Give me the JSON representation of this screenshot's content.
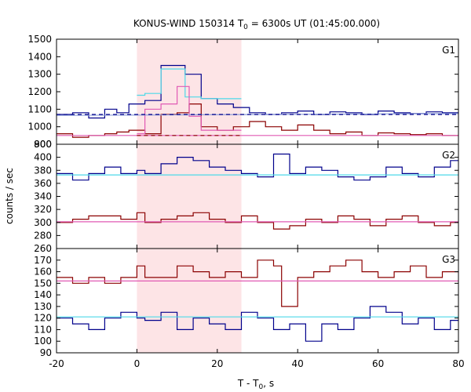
{
  "chart_data": {
    "type": "line",
    "title": "KONUS-WIND 150314 T",
    "title_sub": "0",
    "title_rest": " = 6300s UT (01:45:00.000)",
    "xlabel": "T - T",
    "xlabel_sub": "0",
    "xlabel_rest": ", s",
    "ylabel": "counts / sec",
    "xlim": [
      -20,
      80
    ],
    "x_ticks": [
      -20,
      0,
      20,
      40,
      60,
      80
    ],
    "highlight_interval": [
      0,
      26
    ],
    "highlight_color": "#fde4e6",
    "panels": [
      {
        "label": "G1",
        "ylim": [
          900,
          1500
        ],
        "y_ticks": [
          900,
          1000,
          1100,
          1200,
          1300,
          1400,
          1500
        ],
        "bottom_tick_label": "800",
        "series": [
          {
            "color": "#00008b",
            "style": "step",
            "edges": [
              -20,
              -16,
              -12,
              -8,
              -5,
              -2,
              2,
              6,
              12,
              16,
              20,
              24,
              28,
              32,
              36,
              40,
              44,
              48,
              52,
              56,
              60,
              64,
              68,
              72,
              76,
              80
            ],
            "values": [
              1070,
              1080,
              1050,
              1100,
              1080,
              1130,
              1150,
              1350,
              1300,
              1160,
              1130,
              1110,
              1080,
              1070,
              1080,
              1090,
              1070,
              1085,
              1080,
              1070,
              1090,
              1080,
              1075,
              1085,
              1080
            ]
          },
          {
            "color": "#4dd9e8",
            "style": "step",
            "edges": [
              0,
              2,
              6,
              12,
              16,
              26
            ],
            "values": [
              1180,
              1190,
              1330,
              1170,
              1160
            ]
          },
          {
            "color": "#8b0000",
            "style": "step",
            "edges": [
              -20,
              -16,
              -12,
              -8,
              -5,
              -2,
              2,
              6,
              10,
              13,
              16,
              20,
              24,
              28,
              32,
              36,
              40,
              44,
              48,
              52,
              56,
              60,
              64,
              68,
              72,
              76,
              80
            ],
            "values": [
              960,
              940,
              950,
              960,
              970,
              980,
              960,
              1070,
              1080,
              1130,
              1000,
              980,
              1000,
              1030,
              1000,
              980,
              1010,
              980,
              960,
              970,
              950,
              965,
              960,
              955,
              960,
              950
            ]
          },
          {
            "color": "#e05ab4",
            "style": "step",
            "edges": [
              0,
              2,
              6,
              10,
              13,
              16,
              26
            ],
            "values": [
              960,
              1100,
              1130,
              1230,
              1060,
              980
            ]
          },
          {
            "color": "#8b9dd9",
            "style": "line",
            "x": [
              -20,
              80
            ],
            "y": [
              1065,
              1075
            ]
          },
          {
            "color": "#00008b",
            "style": "dashed",
            "x": [
              -20,
              80
            ],
            "y": [
              1070,
              1070
            ]
          },
          {
            "color": "#e05ab4",
            "style": "line",
            "x": [
              -20,
              80
            ],
            "y": [
              950,
              950
            ]
          },
          {
            "color": "#8b0000",
            "style": "dashed",
            "x": [
              0,
              26
            ],
            "y": [
              950,
              950
            ]
          }
        ]
      },
      {
        "label": "G2",
        "ylim": [
          260,
          420
        ],
        "y_ticks": [
          260,
          280,
          300,
          320,
          340,
          360,
          380,
          400
        ],
        "series": [
          {
            "color": "#00008b",
            "style": "step",
            "edges": [
              -20,
              -16,
              -12,
              -8,
              -4,
              0,
              2,
              6,
              10,
              14,
              18,
              22,
              26,
              30,
              34,
              38,
              42,
              46,
              50,
              54,
              58,
              62,
              66,
              70,
              74,
              78,
              80
            ],
            "values": [
              375,
              365,
              375,
              385,
              375,
              380,
              375,
              390,
              400,
              395,
              385,
              380,
              375,
              370,
              405,
              375,
              385,
              380,
              370,
              365,
              370,
              385,
              375,
              370,
              385,
              395
            ]
          },
          {
            "color": "#8b0000",
            "style": "step",
            "edges": [
              -20,
              -16,
              -12,
              -8,
              -4,
              0,
              2,
              6,
              10,
              14,
              18,
              22,
              26,
              30,
              34,
              38,
              42,
              46,
              50,
              54,
              58,
              62,
              66,
              70,
              74,
              78,
              80
            ],
            "values": [
              300,
              305,
              310,
              310,
              305,
              315,
              300,
              305,
              310,
              315,
              305,
              300,
              310,
              300,
              290,
              295,
              305,
              300,
              310,
              305,
              295,
              305,
              310,
              300,
              295,
              300
            ]
          },
          {
            "color": "#4dd9e8",
            "style": "line",
            "x": [
              -20,
              80
            ],
            "y": [
              373,
              373
            ]
          },
          {
            "color": "#e05ab4",
            "style": "line",
            "x": [
              -20,
              80
            ],
            "y": [
              301,
              301
            ]
          }
        ]
      },
      {
        "label": "G3",
        "ylim": [
          90,
          180
        ],
        "y_ticks": [
          90,
          100,
          110,
          120,
          130,
          140,
          150,
          160,
          170
        ],
        "series": [
          {
            "color": "#8b0000",
            "style": "step",
            "edges": [
              -20,
              -16,
              -12,
              -8,
              -4,
              0,
              2,
              6,
              10,
              14,
              18,
              22,
              26,
              30,
              34,
              36,
              40,
              44,
              48,
              52,
              56,
              60,
              64,
              68,
              72,
              76,
              80
            ],
            "values": [
              155,
              150,
              155,
              150,
              155,
              165,
              155,
              155,
              165,
              160,
              155,
              160,
              155,
              170,
              165,
              130,
              155,
              160,
              165,
              170,
              160,
              155,
              160,
              165,
              155,
              160
            ]
          },
          {
            "color": "#00008b",
            "style": "step",
            "edges": [
              -20,
              -16,
              -12,
              -8,
              -4,
              0,
              2,
              6,
              10,
              14,
              18,
              22,
              26,
              30,
              34,
              38,
              42,
              46,
              50,
              54,
              58,
              62,
              66,
              70,
              74,
              78,
              80
            ],
            "values": [
              120,
              115,
              110,
              120,
              125,
              120,
              118,
              125,
              110,
              120,
              115,
              110,
              125,
              120,
              110,
              115,
              100,
              115,
              110,
              120,
              130,
              125,
              115,
              120,
              110,
              118
            ]
          },
          {
            "color": "#e05ab4",
            "style": "line",
            "x": [
              -20,
              80
            ],
            "y": [
              152,
              152
            ]
          },
          {
            "color": "#4dd9e8",
            "style": "line",
            "x": [
              -20,
              80
            ],
            "y": [
              121,
              121
            ]
          }
        ]
      }
    ]
  }
}
